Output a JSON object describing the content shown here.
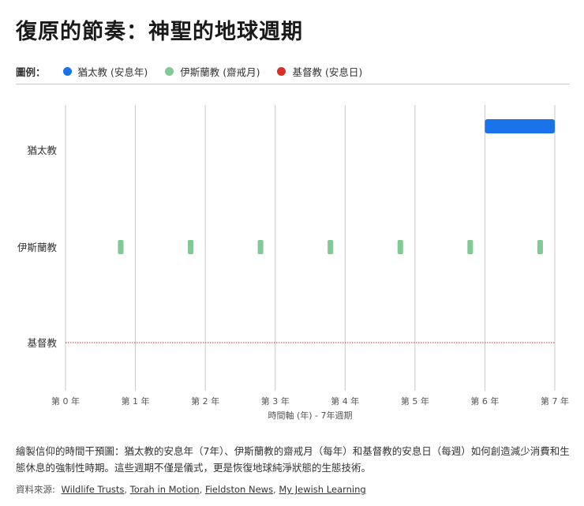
{
  "title": "復原的節奏：神聖的地球週期",
  "legend": {
    "label": "圖例：",
    "items": [
      {
        "label": "猶太教 (安息年)",
        "color": "#1a73e8"
      },
      {
        "label": "伊斯蘭教 (齋戒月)",
        "color": "#81c995"
      },
      {
        "label": "基督教 (安息日)",
        "color": "#d93025"
      }
    ]
  },
  "chart_data": {
    "type": "timeline",
    "xlabel": "時間軸 (年) - 7年週期",
    "xlim": [
      0,
      7
    ],
    "x_ticks": [
      0,
      1,
      2,
      3,
      4,
      5,
      6,
      7
    ],
    "x_tick_labels": [
      "第 0 年",
      "第 1 年",
      "第 2 年",
      "第 3 年",
      "第 4 年",
      "第 5 年",
      "第 6 年",
      "第 7 年"
    ],
    "categories": [
      "猶太教",
      "伊斯蘭教",
      "基督教"
    ],
    "grid": "vertical",
    "series": [
      {
        "name": "猶太教 (安息年)",
        "row": "猶太教",
        "color": "#1a73e8",
        "periods": [
          [
            6,
            7
          ]
        ]
      },
      {
        "name": "伊斯蘭教 (齋戒月)",
        "row": "伊斯蘭教",
        "color": "#81c995",
        "periods": [
          [
            0.75,
            0.83
          ],
          [
            1.75,
            1.83
          ],
          [
            2.75,
            2.83
          ],
          [
            3.75,
            3.83
          ],
          [
            4.75,
            4.83
          ],
          [
            5.75,
            5.83
          ],
          [
            6.75,
            6.83
          ]
        ]
      },
      {
        "name": "基督教 (安息日)",
        "row": "基督教",
        "color": "#d93025",
        "style": "dotted-continuous",
        "periods": [
          [
            0,
            7
          ]
        ]
      }
    ]
  },
  "caption": "繪製信仰的時間干預圖：猶太教的安息年（7年）、伊斯蘭教的齋戒月（每年）和基督教的安息日（每週）如何創造減少消費和生態休息的強制性時期。這些週期不僅是儀式，更是恢復地球純淨狀態的生態技術。",
  "sources": {
    "label": "資料來源:",
    "links": [
      "Wildlife Trusts",
      "Torah in Motion",
      "Fieldston News",
      "My Jewish Learning"
    ]
  }
}
